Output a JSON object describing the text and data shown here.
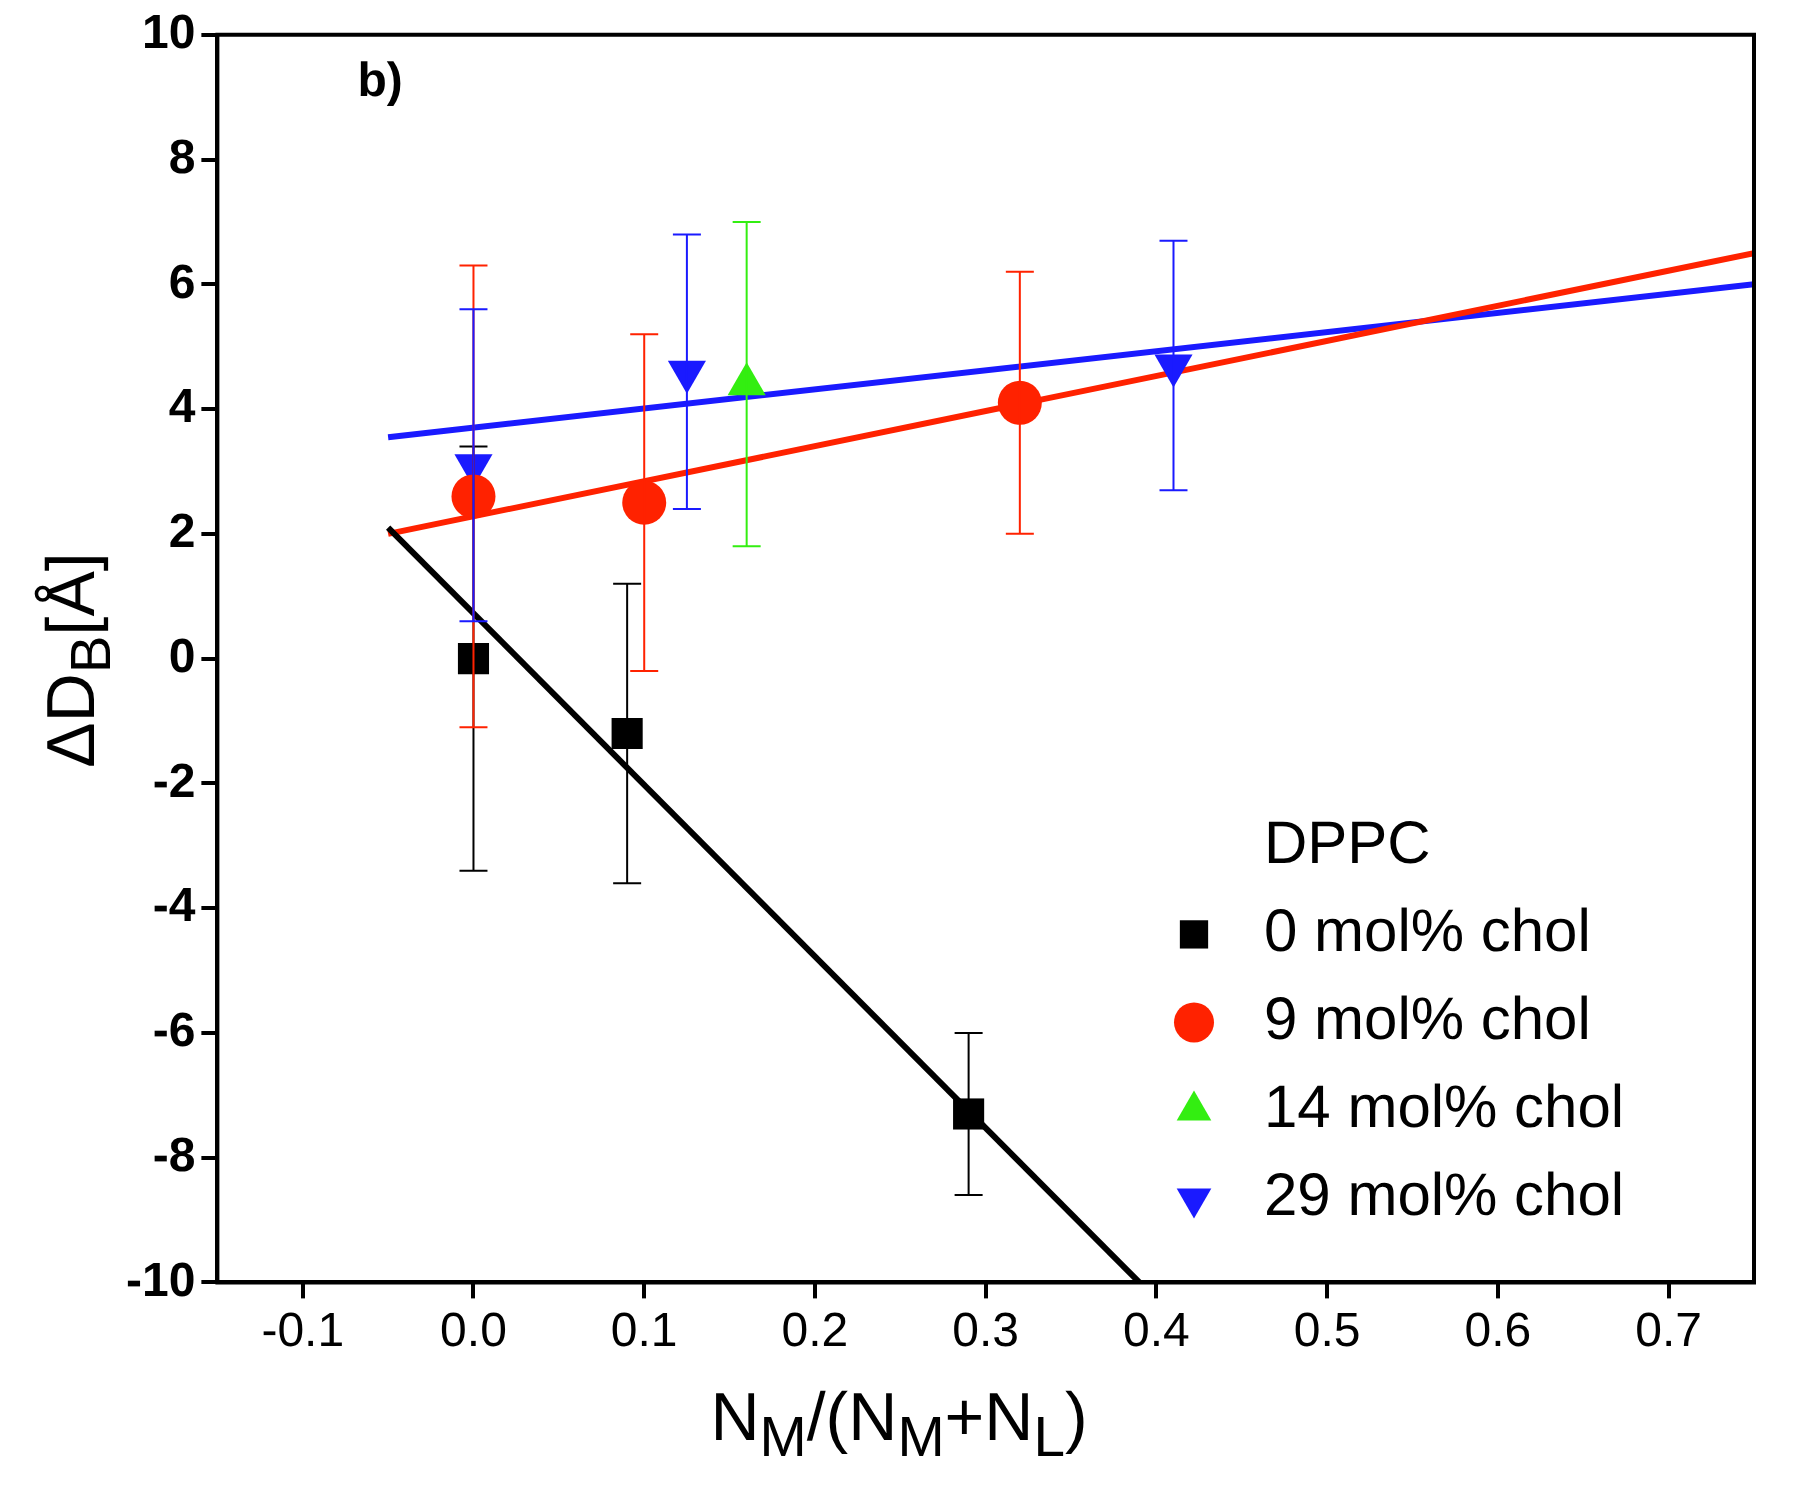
{
  "chart_data": {
    "type": "scatter",
    "xlabel": "N$_{M}$/(N$_{M}$+N$_{L}$)",
    "ylabel": "ΔD$_{B}$[Å]",
    "legend_title": "DPPC",
    "legend": "bottom right",
    "grid": false,
    "xlim": [
      -0.15,
      0.75
    ],
    "ylim": [
      -10,
      10
    ],
    "xticks": [
      {
        "value": -0.1,
        "label": "-0.1"
      },
      {
        "value": 0,
        "label": "0.0"
      },
      {
        "value": 0.1,
        "label": "0.1"
      },
      {
        "value": 0.2,
        "label": "0.2"
      },
      {
        "value": 0.3,
        "label": "0.3"
      },
      {
        "value": 0.4,
        "label": "0.4"
      },
      {
        "value": 0.5,
        "label": "0.5"
      },
      {
        "value": 0.6,
        "label": "0.6"
      },
      {
        "value": 0.7,
        "label": "0.7"
      }
    ],
    "yticks": [
      -10,
      -8,
      -6,
      -4,
      -2,
      0,
      2,
      4,
      6,
      8,
      10
    ],
    "annotations": [
      "b)"
    ],
    "series": [
      {
        "name": "0 mol% chol",
        "color": "#000000",
        "marker": "square",
        "x": [
          0,
          0.09,
          0.29
        ],
        "values": [
          0,
          -1.2,
          -7.3
        ],
        "errors": [
          3.4,
          2.4,
          1.3
        ]
      },
      {
        "name": "9 mol% chol",
        "color": "#ff2200",
        "marker": "circle",
        "x": [
          0,
          0.1,
          0.32
        ],
        "values": [
          2.6,
          2.5,
          4.1
        ],
        "errors": [
          3.7,
          2.7,
          2.1
        ]
      },
      {
        "name": "14 mol% chol",
        "color": "#33ee11",
        "marker": "triangle",
        "x": [
          0.16
        ],
        "values": [
          4.4
        ],
        "errors": [
          2.6
        ]
      },
      {
        "name": "29 mol% chol",
        "color": "#1a1aff",
        "marker": "triangle-down",
        "x": [
          0,
          0.125,
          0.41
        ],
        "values": [
          3.1,
          4.6,
          4.7
        ],
        "errors": [
          2.5,
          2.2,
          2.0
        ]
      },
      {
        "type": "line",
        "color": "#000000",
        "marker": "none",
        "x": [
          -0.05,
          0.39
        ],
        "values": [
          2.1,
          -10
        ]
      },
      {
        "type": "line",
        "color": "#ff2200",
        "marker": "none",
        "x": [
          -0.05,
          0.75
        ],
        "values": [
          2.0,
          6.5
        ]
      },
      {
        "type": "line",
        "color": "#1a1aff",
        "marker": "none",
        "x": [
          -0.05,
          0.75
        ],
        "values": [
          3.55,
          6.0
        ]
      }
    ]
  }
}
